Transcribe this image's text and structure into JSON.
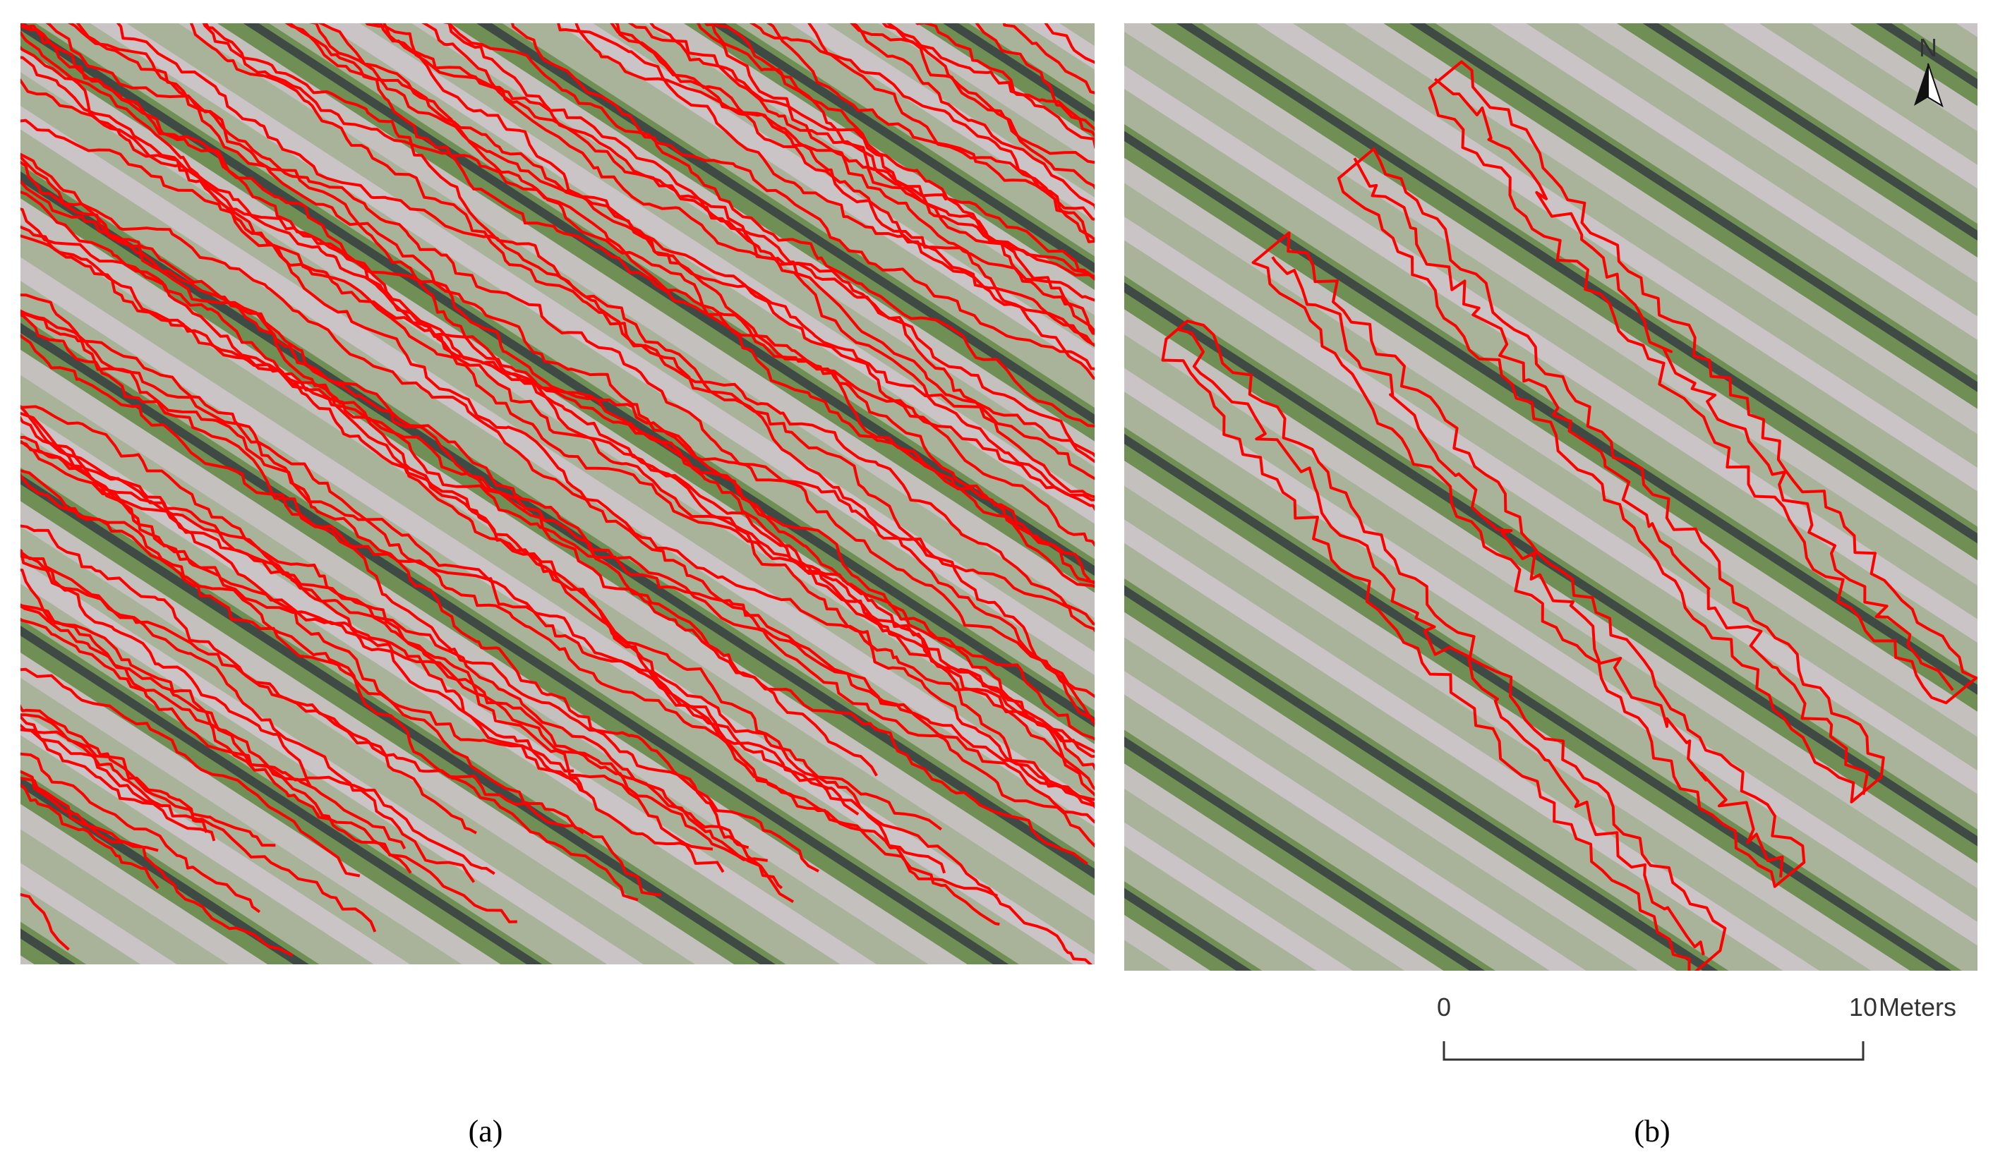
{
  "panels": [
    {
      "label": "(a)"
    },
    {
      "label": "(b)"
    }
  ],
  "compass": "N",
  "scale_bar": {
    "start": 0,
    "end": 10,
    "unit": "Meters"
  }
}
